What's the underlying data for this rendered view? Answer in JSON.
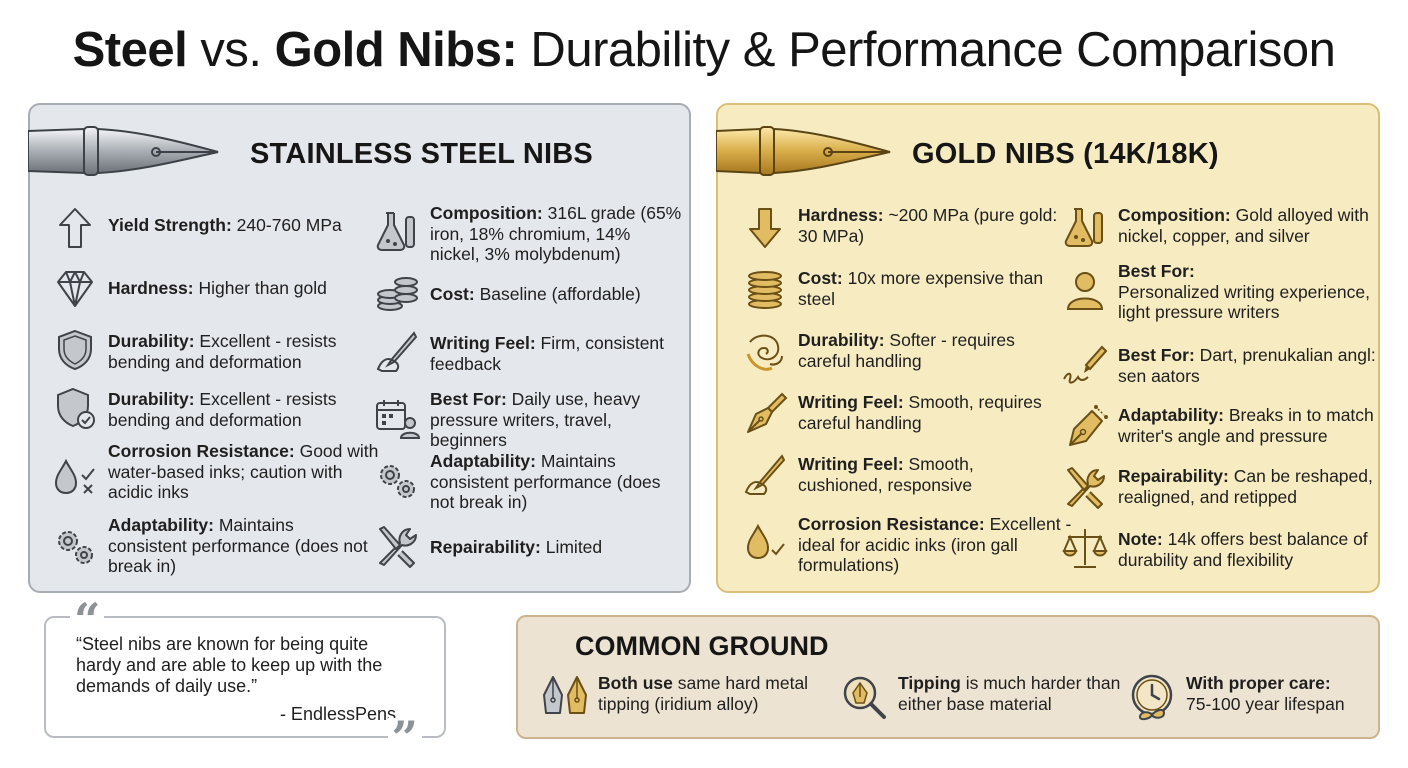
{
  "title": {
    "steel": "Steel",
    "vs": " vs. ",
    "gold": "Gold Nibs:",
    "rest": " Durability & Performance Comparison"
  },
  "steel": {
    "heading": "STAINLESS STEEL NIBS",
    "items": [
      {
        "icon": "arrow-up-icon",
        "label": "Yield Strength:",
        "text": " 240-760 MPa"
      },
      {
        "icon": "diamond-icon",
        "label": "Hardness:",
        "text": " Higher than gold"
      },
      {
        "icon": "shield-icon",
        "label": "Durability:",
        "text": " Excellent - resists bending and deformation"
      },
      {
        "icon": "shield-check-icon",
        "label": "Durability:",
        "text": " Excellent - resists bending and deformation"
      },
      {
        "icon": "droplet-check-icon",
        "label": "Corrosion Resistance:",
        "text": " Good with water-based inks; caution with acidic inks"
      },
      {
        "icon": "gears-icon",
        "label": "Adaptability:",
        "text": " Maintains consistent performance (does not break in)"
      },
      {
        "icon": "lab-flask-icon",
        "label": "Composition:",
        "text": " 316L grade (65% iron, 18% chromium, 14% nickel, 3% molybdenum)"
      },
      {
        "icon": "coin-stack-icon",
        "label": "Cost:",
        "text": " Baseline (affordable)"
      },
      {
        "icon": "hand-pen-icon",
        "label": "Writing Feel:",
        "text": " Firm, consistent feedback"
      },
      {
        "icon": "calendar-user-icon",
        "label": "Best For:",
        "text": " Daily use, heavy pressure writers, travel, beginners"
      },
      {
        "icon": "gears-icon",
        "label": "Adaptability:",
        "text": " Maintains consistent performance (does not break in)"
      },
      {
        "icon": "wrench-screwdriver-icon",
        "label": "Repairability:",
        "text": " Limited"
      }
    ]
  },
  "gold": {
    "heading": "GOLD NIBS (14K/18K)",
    "items": [
      {
        "icon": "arrow-down-icon",
        "label": "Hardness:",
        "text": " ~200 MPa (pure gold: 30 MPa)"
      },
      {
        "icon": "coin-stack-icon",
        "label": "Cost:",
        "text": " 10x more expensive than steel"
      },
      {
        "icon": "swirl-icon",
        "label": "Durability:",
        "text": " Softer - requires careful handling"
      },
      {
        "icon": "fountain-pen-icon",
        "label": "Writing Feel:",
        "text": " Smooth, requires careful handling"
      },
      {
        "icon": "hand-pen-icon",
        "label": "Writing Feel:",
        "text": " Smooth, cushioned, responsive"
      },
      {
        "icon": "droplet-check-icon",
        "label": "Corrosion Resistance:",
        "text": " Excellent - ideal for acidic inks (iron gall formulations)"
      },
      {
        "icon": "lab-flask-icon",
        "label": "Composition:",
        "text": " Gold alloyed with nickel, copper, and silver"
      },
      {
        "icon": "user-icon",
        "label": "Best For:",
        "text": " Personalized writing experience, light pressure writers"
      },
      {
        "icon": "signature-pen-icon",
        "label": "Best For:",
        "text": " Dart, prenukalian angl: sen aators"
      },
      {
        "icon": "nib-adjust-icon",
        "label": "Adaptability:",
        "text": " Breaks in to match writer's angle and pressure"
      },
      {
        "icon": "wrench-screwdriver-icon",
        "label": "Repairability:",
        "text": " Can be reshaped, realigned, and retipped"
      },
      {
        "icon": "balance-scale-icon",
        "label": "Note:",
        "text": " 14k offers best balance of durability and flexibility"
      }
    ]
  },
  "quote": {
    "text": "“Steel nibs are known for being quite hardy and are able to keep up with the demands of daily use.”",
    "source": "- EndlessPens"
  },
  "common": {
    "heading": "COMMON GROUND",
    "items": [
      {
        "icon": "twin-nibs-icon",
        "label": "Both use",
        "text": " same hard metal tipping (iridium alloy)"
      },
      {
        "icon": "magnifier-nib-icon",
        "label": "Tipping",
        "text": " is much harder than either base material"
      },
      {
        "icon": "clock-infinity-icon",
        "label": "With proper care:",
        "text": " 75-100 year lifespan"
      }
    ]
  },
  "colors": {
    "steel_panel": "#e4e7eb",
    "gold_panel": "#f7ebc1",
    "gold_icon": "#c9962e",
    "steel_icon": "#4a4f55",
    "common_panel": "#ede3d3"
  }
}
